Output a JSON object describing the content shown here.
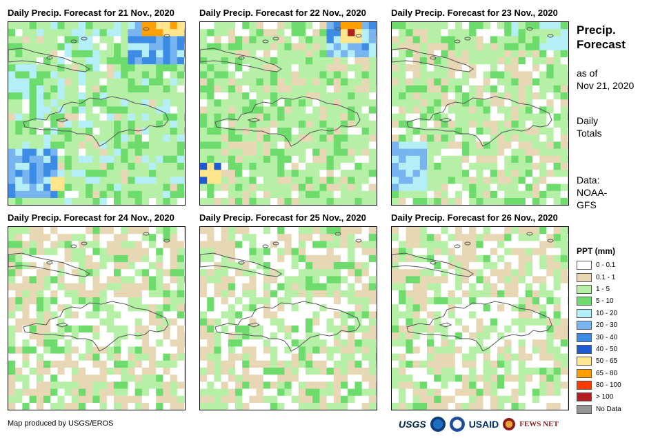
{
  "panels": [
    {
      "title": "Daily Precip. Forecast for 21 Nov., 2020",
      "seed": 21,
      "heavy": "ne_sw"
    },
    {
      "title": "Daily Precip. Forecast for 22 Nov., 2020",
      "seed": 22,
      "heavy": "ne_w"
    },
    {
      "title": "Daily Precip. Forecast for 23 Nov., 2020",
      "seed": 23,
      "heavy": "sw"
    },
    {
      "title": "Daily Precip. Forecast for 24 Nov., 2020",
      "seed": 24,
      "heavy": "dry"
    },
    {
      "title": "Daily Precip. Forecast for 25 Nov., 2020",
      "seed": 25,
      "heavy": "dry"
    },
    {
      "title": "Daily Precip. Forecast for 26 Nov., 2020",
      "seed": 26,
      "heavy": "dry"
    }
  ],
  "sidebar": {
    "title_line1": "Precip.",
    "title_line2": "Forecast",
    "asof_line1": "as of",
    "asof_line2": "Nov 21, 2020",
    "totals_line1": "Daily",
    "totals_line2": "Totals",
    "data_line1": "Data:",
    "data_line2": "NOAA-",
    "data_line3": "GFS"
  },
  "legend": {
    "title": "PPT (mm)",
    "items": [
      {
        "label": "0 - 0.1",
        "color": "#ffffff"
      },
      {
        "label": "0.1 - 1",
        "color": "#e8d7b4"
      },
      {
        "label": "1 - 5",
        "color": "#b5f0a6"
      },
      {
        "label": "5 - 10",
        "color": "#6ddc6d"
      },
      {
        "label": "10 - 20",
        "color": "#b4eef6"
      },
      {
        "label": "20 - 30",
        "color": "#78b4f0"
      },
      {
        "label": "30 - 40",
        "color": "#3c8ce6"
      },
      {
        "label": "40 - 50",
        "color": "#1e5ad2"
      },
      {
        "label": "50 - 65",
        "color": "#ffe68c"
      },
      {
        "label": "65 - 80",
        "color": "#ffa000"
      },
      {
        "label": "80 - 100",
        "color": "#ff3c00"
      },
      {
        "label": "> 100",
        "color": "#b41e1e"
      },
      {
        "label": "No Data",
        "color": "#969696"
      }
    ]
  },
  "footer": {
    "credit": "Map produced by USGS/EROS",
    "logo_usgs": "USGS",
    "logo_usaid": "USAID",
    "logo_fews": "FEWS NET"
  }
}
